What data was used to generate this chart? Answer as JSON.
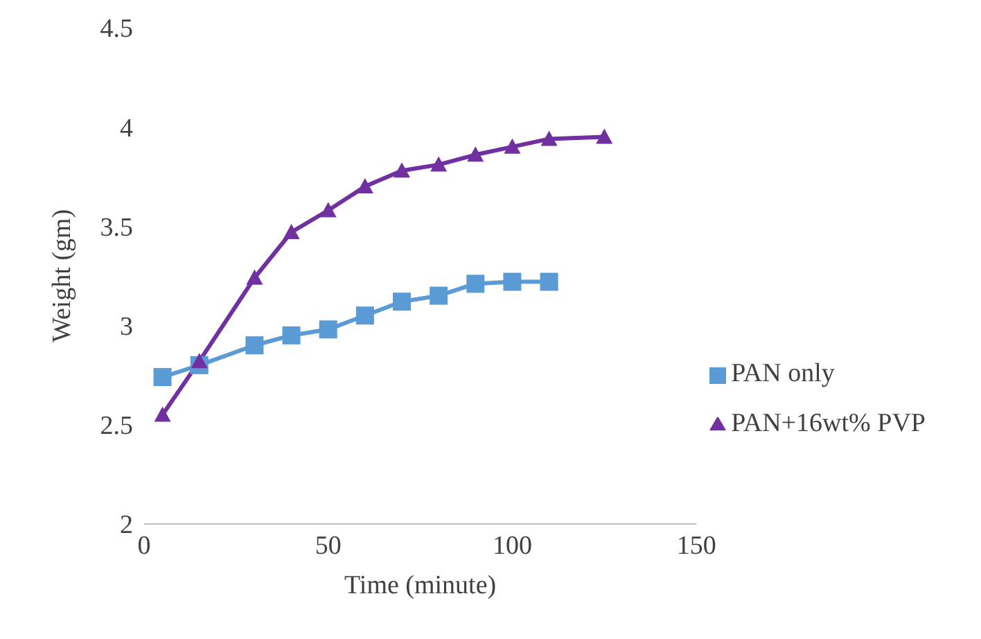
{
  "chart_data": {
    "type": "line",
    "xlabel": "Time (minute)",
    "ylabel": "Weight  (gm)",
    "xlim": [
      0,
      150
    ],
    "xticks": [
      0,
      50,
      100,
      150
    ],
    "ylim": [
      2,
      4.5
    ],
    "yticks": [
      2,
      2.5,
      3,
      3.5,
      4,
      4.5
    ],
    "grid": false,
    "legend": "right",
    "line_style": "solid",
    "series": [
      {
        "name": "PAN only",
        "color": "#5b9bd5",
        "marker": "square",
        "x": [
          5,
          15,
          30,
          40,
          50,
          60,
          70,
          80,
          90,
          100,
          110
        ],
        "values": [
          2.74,
          2.8,
          2.9,
          2.95,
          2.98,
          3.05,
          3.12,
          3.15,
          3.21,
          3.22,
          3.22
        ]
      },
      {
        "name": "PAN+16wt% PVP",
        "color": "#7030a0",
        "marker": "triangle",
        "x": [
          5,
          15,
          30,
          40,
          50,
          60,
          70,
          80,
          90,
          100,
          110,
          125
        ],
        "values": [
          2.55,
          2.82,
          3.24,
          3.47,
          3.58,
          3.7,
          3.78,
          3.81,
          3.86,
          3.9,
          3.94,
          3.95
        ]
      }
    ]
  }
}
